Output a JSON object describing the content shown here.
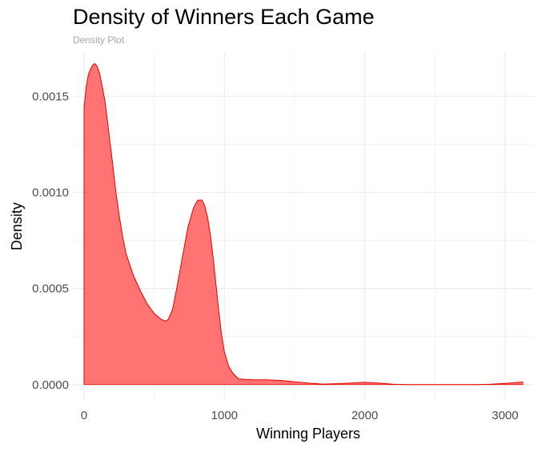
{
  "chart_data": {
    "type": "area",
    "title": "Density of Winners Each Game",
    "subtitle": "Density Plot",
    "xlabel": "Winning Players",
    "ylabel": "Density",
    "xlim": [
      -80,
      3200
    ],
    "ylim": [
      -8e-05,
      0.00173
    ],
    "x_ticks": [
      0,
      1000,
      2000,
      3000
    ],
    "y_ticks": [
      0.0,
      0.0005,
      0.001,
      0.0015
    ],
    "x_tick_labels": [
      "0",
      "1000",
      "2000",
      "3000"
    ],
    "y_tick_labels": [
      "0.0000",
      "0.0005",
      "0.0010",
      "0.0015"
    ],
    "grid": true,
    "legend": "none",
    "fill_color": "#ff6b6b",
    "line_color": "#e60000",
    "series": [
      {
        "x": [
          0,
          15,
          30,
          45,
          60,
          75,
          90,
          110,
          130,
          150,
          175,
          200,
          225,
          250,
          275,
          300,
          350,
          400,
          450,
          500,
          550,
          580,
          600,
          630,
          660,
          700,
          740,
          780,
          810,
          840,
          860,
          880,
          900,
          920,
          940,
          960,
          980,
          1000,
          1030,
          1060,
          1100,
          1150,
          1200,
          1300,
          1400,
          1500,
          1600,
          1700,
          1800,
          1900,
          2000,
          2100,
          2200,
          2300,
          2400,
          2500,
          2600,
          2700,
          2800,
          2900,
          3000,
          3050,
          3100,
          3130
        ],
        "y": [
          0.00144,
          0.00155,
          0.00161,
          0.00164,
          0.00166,
          0.00167,
          0.00166,
          0.00162,
          0.00155,
          0.00147,
          0.00132,
          0.00117,
          0.00101,
          0.00088,
          0.00077,
          0.00068,
          0.00057,
          0.00049,
          0.00042,
          0.00037,
          0.00034,
          0.00033,
          0.00034,
          0.00039,
          0.0005,
          0.00066,
          0.00082,
          0.00092,
          0.00096,
          0.00096,
          0.00093,
          0.00087,
          0.00078,
          0.00066,
          0.00052,
          0.00038,
          0.00026,
          0.00017,
          9.5e-05,
          6e-05,
          3e-05,
          2.7e-05,
          2.5e-05,
          2.5e-05,
          2.2e-05,
          1.5e-05,
          8e-06,
          3e-06,
          5e-06,
          8e-06,
          1.2e-05,
          8e-06,
          2e-06,
          0.0,
          0.0,
          0.0,
          0.0,
          0.0,
          0.0,
          2e-06,
          6e-06,
          9e-06,
          1.2e-05,
          1.3e-05
        ]
      }
    ]
  }
}
